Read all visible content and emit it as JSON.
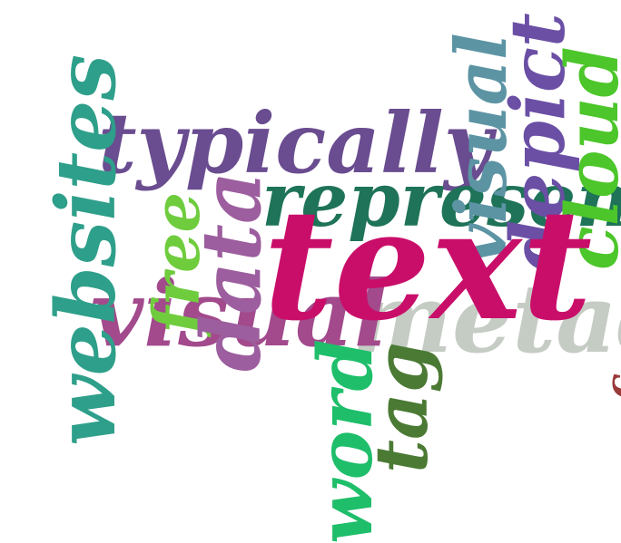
{
  "word_cloud": {
    "words": [
      {
        "text": "metadata",
        "color": "#C5CCC4"
      },
      {
        "text": "visual",
        "color": "#A24A8C"
      },
      {
        "text": "typically",
        "color": "#6A4C90"
      },
      {
        "text": "websites",
        "color": "#2E9F8A"
      },
      {
        "text": "free",
        "color": "#6FCC3D"
      },
      {
        "text": "data",
        "color": "#9C5E9E"
      },
      {
        "text": "represent",
        "color": "#1E7358"
      },
      {
        "text": "visual",
        "color": "#5C94A4"
      },
      {
        "text": "depict",
        "color": "#6A4FA5"
      },
      {
        "text": "cloud",
        "color": "#4CC62A"
      },
      {
        "text": "text",
        "color": "#C90E6A"
      },
      {
        "text": "tag",
        "color": "#4B7A34"
      },
      {
        "text": "word",
        "color": "#1EBE6A"
      },
      {
        "text": "c",
        "color": "#9A3A3A"
      }
    ]
  }
}
